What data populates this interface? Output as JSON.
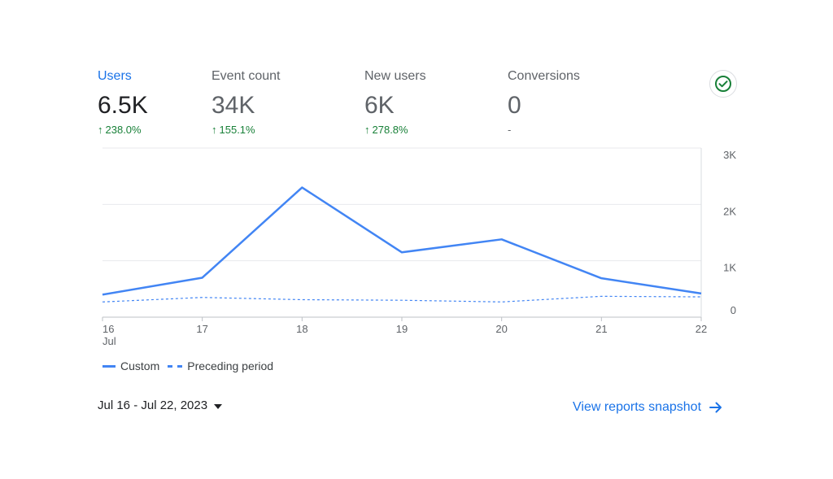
{
  "metrics": [
    {
      "label": "Users",
      "value": "6.5K",
      "change": "238.0%",
      "trend": "up"
    },
    {
      "label": "Event count",
      "value": "34K",
      "change": "155.1%",
      "trend": "up"
    },
    {
      "label": "New users",
      "value": "6K",
      "change": "278.8%",
      "trend": "up"
    },
    {
      "label": "Conversions",
      "value": "0",
      "change": "-",
      "trend": "none"
    }
  ],
  "status_icon": "check-circle-icon",
  "colors": {
    "accent": "#1a73e8",
    "series": "#4285f4",
    "positive": "#188038"
  },
  "chart_data": {
    "type": "line",
    "x": [
      "16",
      "17",
      "18",
      "19",
      "20",
      "21",
      "22"
    ],
    "x_sublabel": "Jul",
    "series": [
      {
        "name": "Custom",
        "style": "solid",
        "values": [
          400,
          700,
          2300,
          1150,
          1380,
          690,
          420
        ]
      },
      {
        "name": "Preceding period",
        "style": "dashed",
        "values": [
          270,
          350,
          310,
          300,
          270,
          370,
          360
        ]
      }
    ],
    "yticks": [
      "3K",
      "2K",
      "1K",
      "0"
    ],
    "ytick_values": [
      3000,
      2000,
      1000,
      0
    ],
    "ylim": [
      0,
      3000
    ],
    "axis_position": "right",
    "grid": true
  },
  "legend": {
    "custom": "Custom",
    "preceding": "Preceding period"
  },
  "footer": {
    "date_range": "Jul 16 - Jul 22, 2023",
    "link_label": "View reports snapshot"
  }
}
